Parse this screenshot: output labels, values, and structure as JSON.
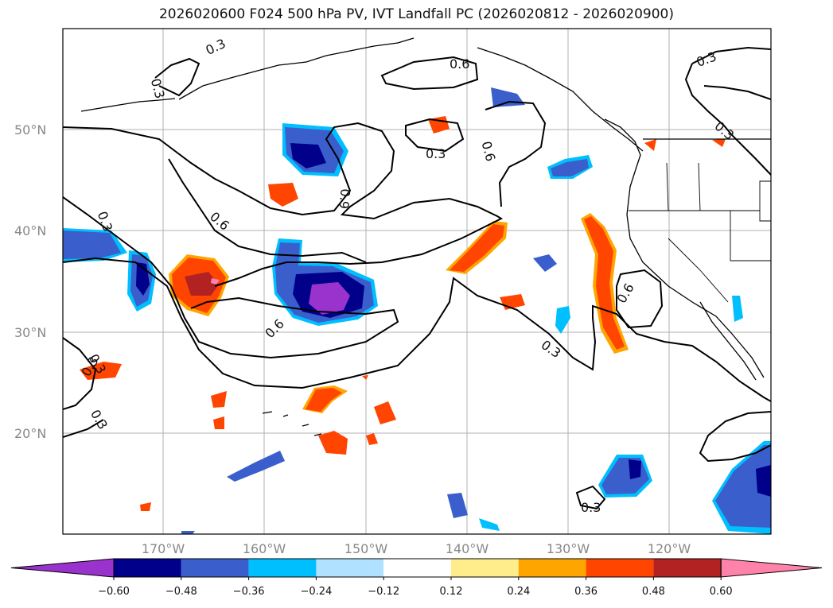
{
  "title": "2026020600 F024 500 hPa PV, IVT Landfall PC (2026020812 - 2026020900)",
  "lat_labels": [
    "50°N",
    "40°N",
    "30°N",
    "20°N"
  ],
  "lon_labels": [
    "170°W",
    "160°W",
    "150°W",
    "140°W",
    "130°W",
    "120°W"
  ],
  "contour_labels": [
    "0.3",
    "0.3",
    "0.6",
    "0.3",
    "0.6",
    "0.3",
    "0.9",
    "0.6",
    "0.3",
    "0.6",
    "0.3",
    "0.3",
    "0.3",
    "0.3",
    "0.6",
    "0.3",
    "0.3"
  ],
  "colorbar": {
    "ticks": [
      "−0.60",
      "−0.48",
      "−0.36",
      "−0.24",
      "−0.12",
      "0.12",
      "0.24",
      "0.36",
      "0.48",
      "0.60"
    ],
    "colors": [
      "#9a32cd",
      "#00008b",
      "#3a5fcd",
      "#00bfff",
      "#b0e2ff",
      "#ffffff",
      "#ffec8b",
      "#ffa500",
      "#ff4500",
      "#b22222",
      "#ff82ab"
    ]
  }
}
